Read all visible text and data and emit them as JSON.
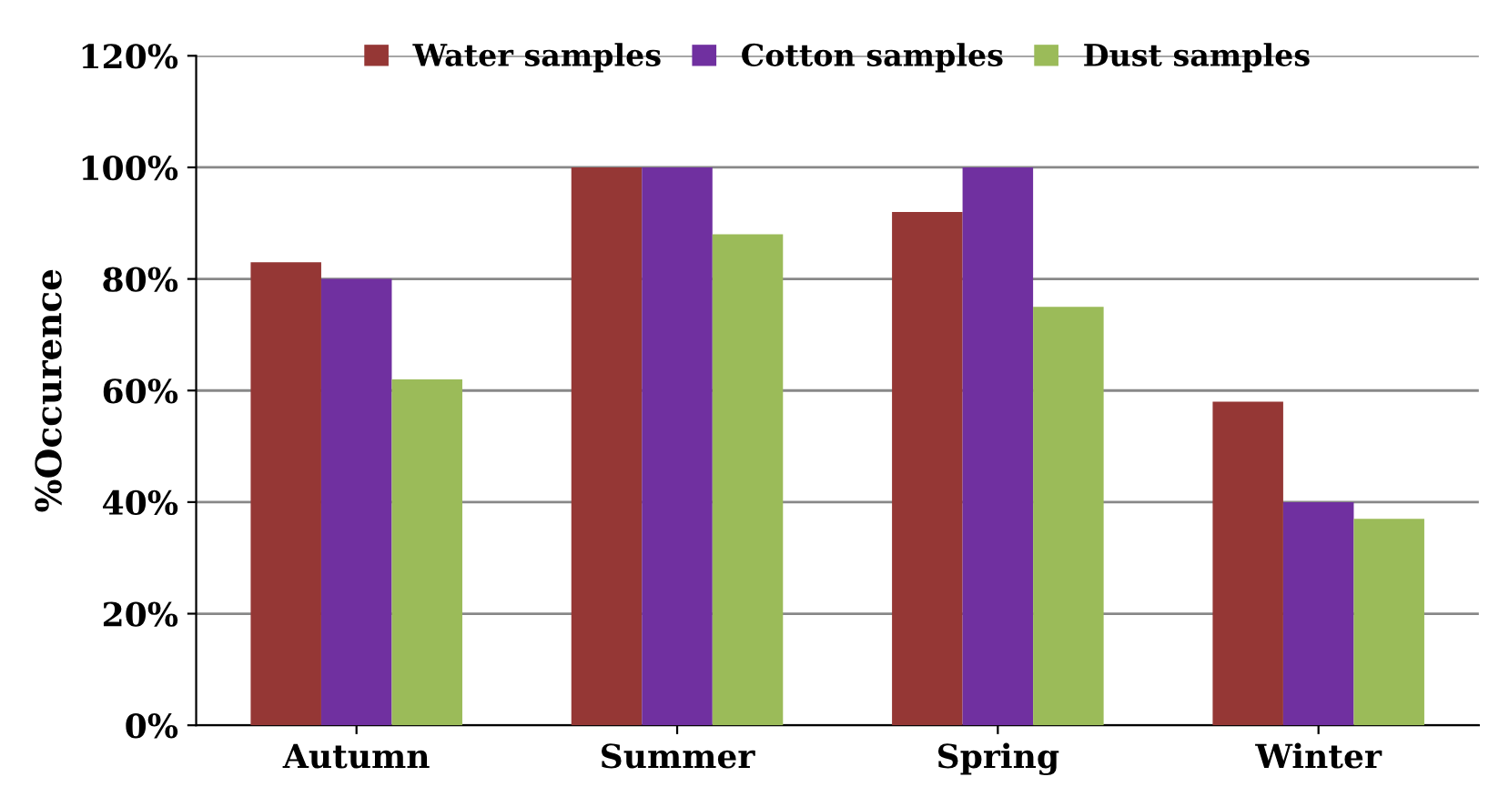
{
  "chart_data": {
    "type": "bar",
    "ylabel": "%Occurence",
    "categories": [
      "Autumn",
      "Summer",
      "Spring",
      "Winter"
    ],
    "series": [
      {
        "name": "Water samples",
        "color": "#953735",
        "values": [
          83,
          100,
          92,
          58
        ]
      },
      {
        "name": "Cotton samples",
        "color": "#7030a0",
        "values": [
          80,
          100,
          100,
          40
        ]
      },
      {
        "name": "Dust samples",
        "color": "#9bbb59",
        "values": [
          62,
          88,
          75,
          37
        ]
      }
    ],
    "ylim": [
      0,
      120
    ],
    "yticks": [
      {
        "value": 0,
        "label": "0%"
      },
      {
        "value": 20,
        "label": "20%"
      },
      {
        "value": 40,
        "label": "40%"
      },
      {
        "value": 60,
        "label": "60%"
      },
      {
        "value": 80,
        "label": "80%"
      },
      {
        "value": 100,
        "label": "100%"
      },
      {
        "value": 120,
        "label": "120%"
      }
    ],
    "grid": "y",
    "legend": "top"
  }
}
